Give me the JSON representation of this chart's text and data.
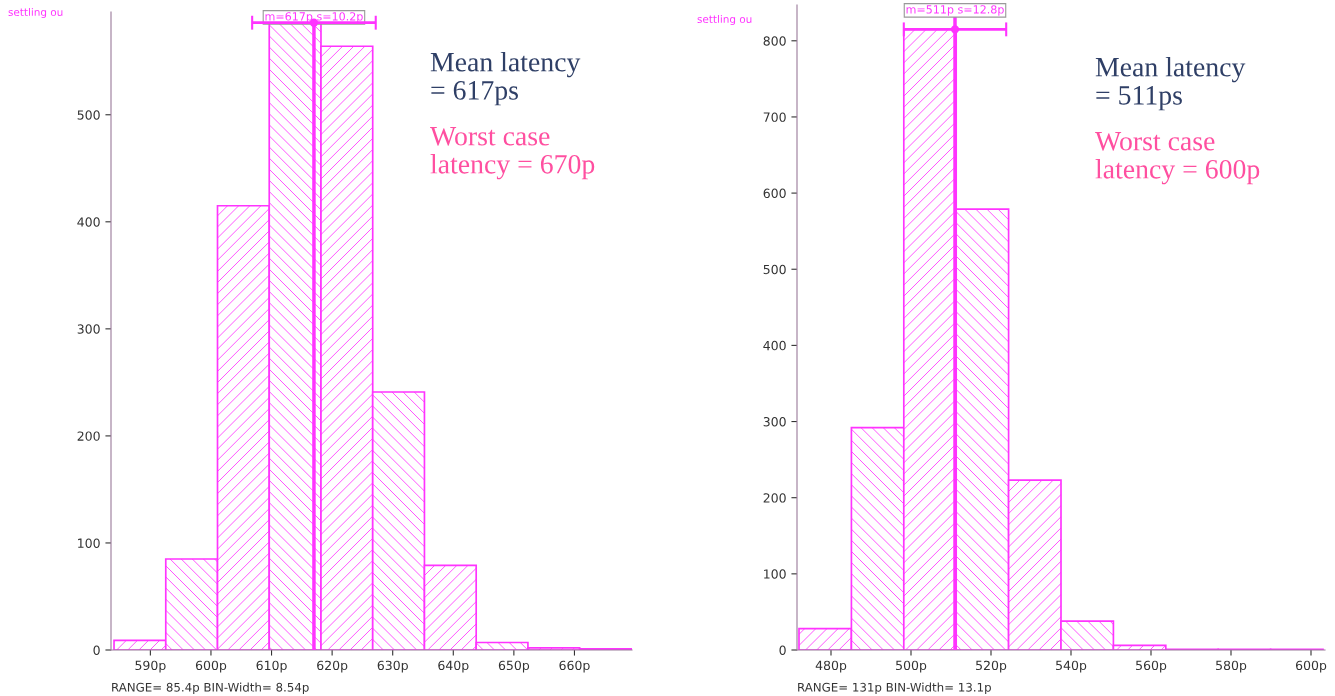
{
  "chart_data": [
    {
      "type": "histogram",
      "title": "settling ou",
      "bins": [
        584.0,
        592.54,
        601.08,
        609.62,
        618.16,
        626.7,
        635.24,
        643.78,
        652.32,
        660.86,
        669.4
      ],
      "series": [
        {
          "color": "#ff33ff",
          "values": [
            9,
            85,
            415,
            587,
            564,
            241,
            79,
            7,
            2,
            1
          ]
        },
        {
          "type": "scatter",
          "color": "#ff33ff",
          "x": [
            617
          ],
          "values": [
            586
          ],
          "xerrors": [
            10.2
          ],
          "marker": "circle"
        }
      ],
      "xlim": [
        583.5,
        669.5
      ],
      "xticks": [
        {
          "value": 590,
          "label": "590p"
        },
        {
          "value": 600,
          "label": "600p"
        },
        {
          "value": 610,
          "label": "610p"
        },
        {
          "value": 620,
          "label": "620p"
        },
        {
          "value": 630,
          "label": "630p"
        },
        {
          "value": 640,
          "label": "640p"
        },
        {
          "value": 650,
          "label": "650p"
        },
        {
          "value": 660,
          "label": "660p"
        }
      ],
      "ylim": [
        0,
        596
      ],
      "yticks": [
        0,
        100,
        200,
        300,
        400,
        500
      ],
      "ref_lines": [
        {
          "axis": "x",
          "value": 617,
          "label": "m=617p s=10.2p",
          "color": "#ff33ff"
        }
      ],
      "annotations": [
        "Mean latency\n= 617ps",
        "Worst case\nlatency = 670p",
        "RANGE= 85.4p BIN-Width= 8.54p"
      ],
      "grid": false,
      "legend": false
    },
    {
      "type": "histogram",
      "title": "settling ou",
      "bins": [
        472.0,
        485.1,
        498.2,
        511.3,
        524.4,
        537.5,
        550.6,
        563.7,
        576.8,
        589.9,
        603.0
      ],
      "series": [
        {
          "color": "#ff33ff",
          "values": [
            28,
            292,
            815,
            579,
            223,
            38,
            6,
            1,
            1,
            1
          ]
        },
        {
          "type": "scatter",
          "color": "#ff33ff",
          "x": [
            511
          ],
          "values": [
            815
          ],
          "xerrors": [
            12.8
          ],
          "marker": "circle"
        }
      ],
      "xlim": [
        471.5,
        603.5
      ],
      "xticks": [
        {
          "value": 480,
          "label": "480p"
        },
        {
          "value": 500,
          "label": "500p"
        },
        {
          "value": 520,
          "label": "520p"
        },
        {
          "value": 540,
          "label": "540p"
        },
        {
          "value": 560,
          "label": "560p"
        },
        {
          "value": 580,
          "label": "580p"
        },
        {
          "value": 600,
          "label": "600p"
        }
      ],
      "ylim": [
        0,
        847
      ],
      "yticks": [
        0,
        100,
        200,
        300,
        400,
        500,
        600,
        700,
        800
      ],
      "ref_lines": [
        {
          "axis": "x",
          "value": 511,
          "label": "m=511p s=12.8p",
          "color": "#ff33ff"
        }
      ],
      "annotations": [
        "Mean latency\n= 511ps",
        "Worst case\nlatency = 600p",
        "RANGE= 131p BIN-Width= 13.1p"
      ],
      "grid": false,
      "legend": false
    }
  ]
}
